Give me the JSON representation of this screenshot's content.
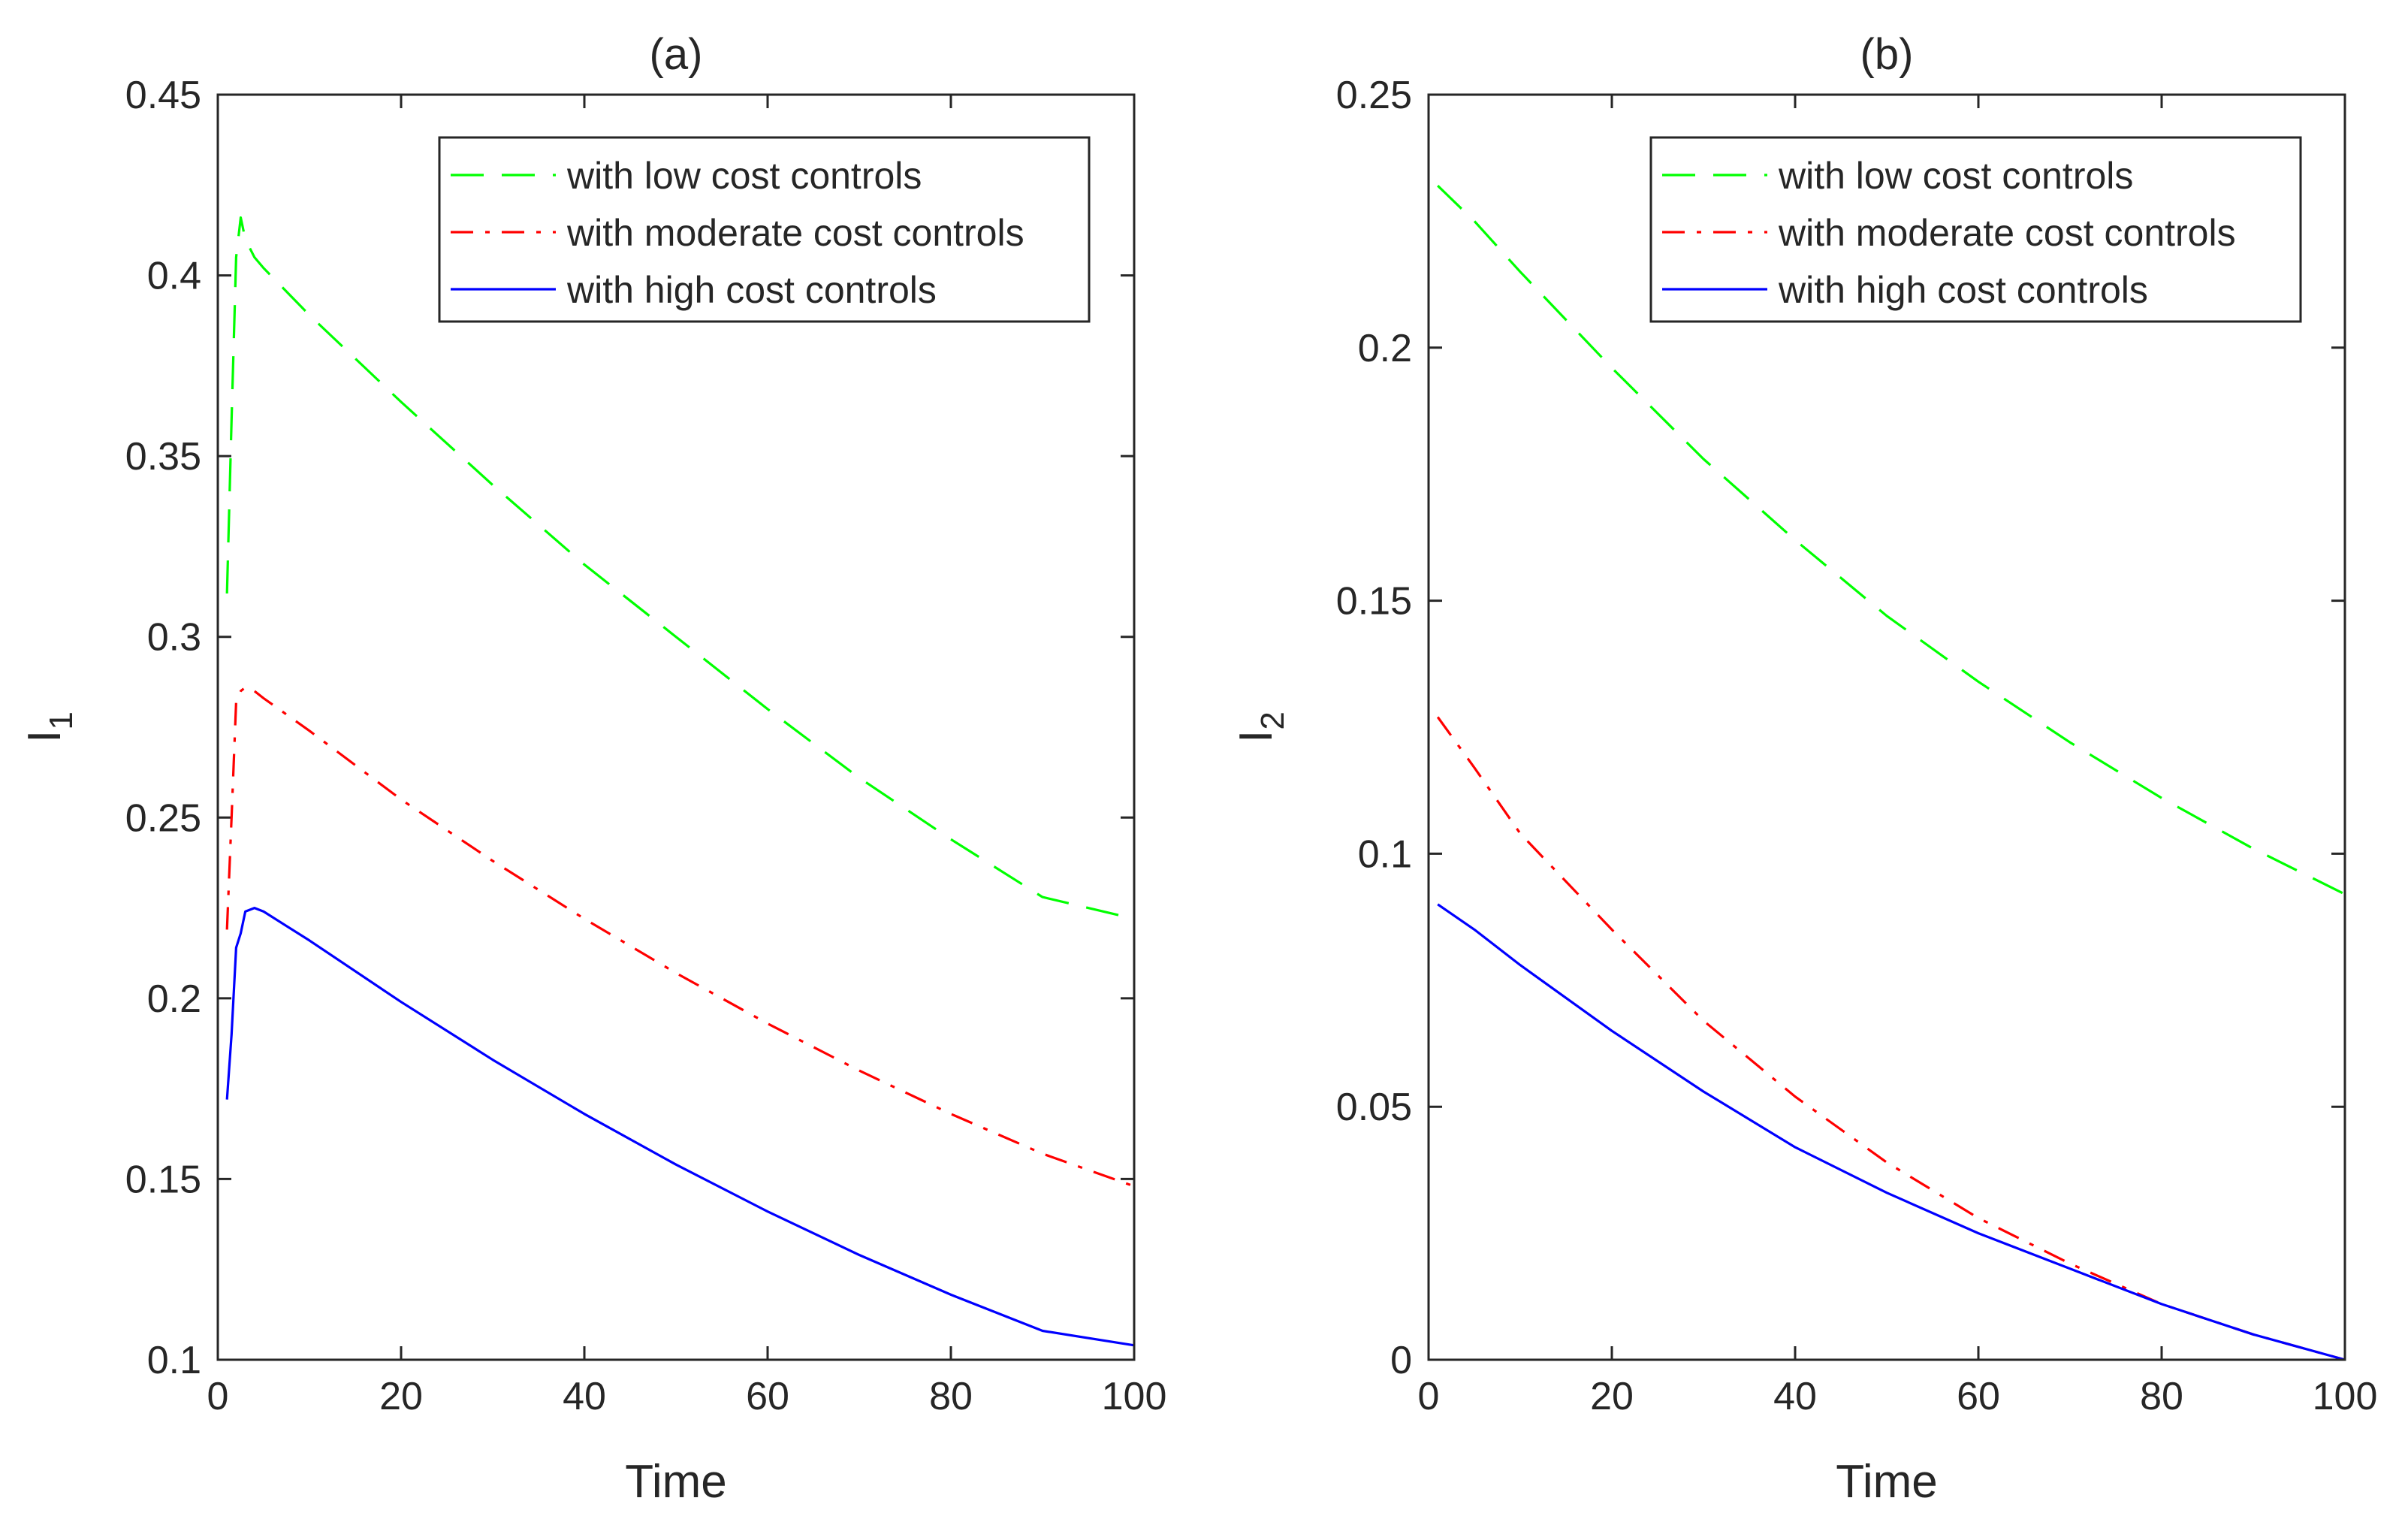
{
  "chart_data": [
    {
      "type": "line",
      "title": "(a)",
      "xlabel": "Time",
      "ylabel": "I",
      "ylabel_sub": "1",
      "xlim": [
        0,
        100
      ],
      "ylim": [
        0.1,
        0.45
      ],
      "xticks": [
        0,
        20,
        40,
        60,
        80,
        100
      ],
      "xtick_labels": [
        "0",
        "20",
        "40",
        "60",
        "80",
        "100"
      ],
      "yticks": [
        0.1,
        0.15,
        0.2,
        0.25,
        0.3,
        0.35,
        0.4,
        0.45
      ],
      "ytick_labels": [
        "0.1",
        "0.15",
        "0.2",
        "0.25",
        "0.3",
        "0.35",
        "0.4",
        "0.45"
      ],
      "legend_position": "top-right",
      "series": [
        {
          "name": "with low cost controls",
          "color": "#00ff00",
          "style": "dashed",
          "x": [
            1,
            1.5,
            2,
            2.5,
            3,
            4,
            5,
            10,
            20,
            30,
            40,
            50,
            60,
            70,
            80,
            90,
            100
          ],
          "y": [
            0.312,
            0.36,
            0.405,
            0.416,
            0.41,
            0.405,
            0.402,
            0.389,
            0.365,
            0.342,
            0.32,
            0.3,
            0.28,
            0.261,
            0.244,
            0.228,
            0.222
          ]
        },
        {
          "name": "with moderate cost controls",
          "color": "#ff0000",
          "style": "dashdot",
          "x": [
            1,
            1.5,
            2,
            2.5,
            3,
            4,
            5,
            10,
            20,
            30,
            40,
            50,
            60,
            70,
            80,
            90,
            100
          ],
          "y": [
            0.219,
            0.25,
            0.282,
            0.285,
            0.286,
            0.285,
            0.283,
            0.274,
            0.255,
            0.238,
            0.222,
            0.207,
            0.193,
            0.18,
            0.168,
            0.157,
            0.148
          ]
        },
        {
          "name": "with high cost controls",
          "color": "#0000ff",
          "style": "solid",
          "x": [
            1,
            1.5,
            2,
            2.5,
            3,
            4,
            5,
            10,
            20,
            30,
            40,
            50,
            60,
            70,
            80,
            90,
            100
          ],
          "y": [
            0.172,
            0.19,
            0.214,
            0.218,
            0.224,
            0.225,
            0.224,
            0.216,
            0.199,
            0.183,
            0.168,
            0.154,
            0.141,
            0.129,
            0.118,
            0.108,
            0.104
          ]
        }
      ]
    },
    {
      "type": "line",
      "title": "(b)",
      "xlabel": "Time",
      "ylabel": "I",
      "ylabel_sub": "2",
      "xlim": [
        0,
        100
      ],
      "ylim": [
        0,
        0.25
      ],
      "xticks": [
        0,
        20,
        40,
        60,
        80,
        100
      ],
      "xtick_labels": [
        "0",
        "20",
        "40",
        "60",
        "80",
        "100"
      ],
      "yticks": [
        0,
        0.05,
        0.1,
        0.15,
        0.2,
        0.25
      ],
      "ytick_labels": [
        "0",
        "0.05",
        "0.1",
        "0.15",
        "0.2",
        "0.25"
      ],
      "legend_position": "top-right",
      "series": [
        {
          "name": "with low cost controls",
          "color": "#00ff00",
          "style": "dashed",
          "x": [
            1,
            5,
            10,
            20,
            30,
            40,
            50,
            60,
            70,
            80,
            90,
            100
          ],
          "y": [
            0.232,
            0.225,
            0.215,
            0.196,
            0.178,
            0.162,
            0.147,
            0.134,
            0.122,
            0.111,
            0.101,
            0.092
          ]
        },
        {
          "name": "with moderate cost controls",
          "color": "#ff0000",
          "style": "dashdot",
          "x": [
            1,
            5,
            10,
            20,
            30,
            40,
            50,
            60,
            70,
            80,
            90,
            100
          ],
          "y": [
            0.127,
            0.117,
            0.104,
            0.085,
            0.067,
            0.052,
            0.039,
            0.028,
            0.019,
            0.011,
            0.005,
            0.0
          ]
        },
        {
          "name": "with high cost controls",
          "color": "#0000ff",
          "style": "solid",
          "x": [
            1,
            5,
            10,
            20,
            30,
            40,
            50,
            60,
            70,
            80,
            90,
            100
          ],
          "y": [
            0.09,
            0.085,
            0.078,
            0.065,
            0.053,
            0.042,
            0.033,
            0.025,
            0.018,
            0.011,
            0.005,
            0.0
          ]
        }
      ]
    }
  ]
}
